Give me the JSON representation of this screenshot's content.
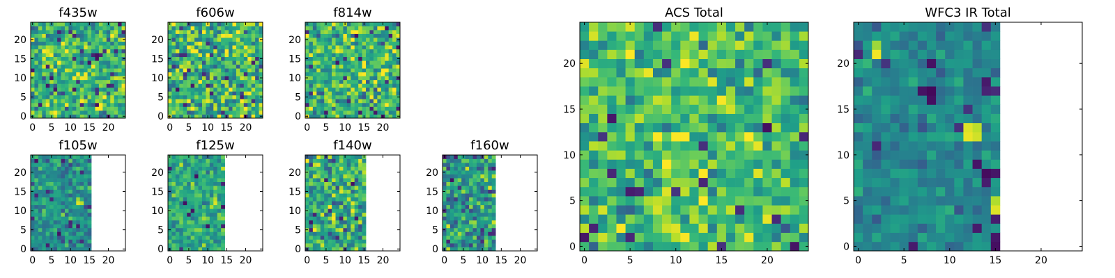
{
  "figure": {
    "background": "#ffffff",
    "colormap": "viridis"
  },
  "chart_data": [
    {
      "id": "f435w",
      "type": "heatmap",
      "title": "f435w",
      "valid_columns": 25,
      "xlim": [
        0,
        24
      ],
      "ylim": [
        0,
        24
      ],
      "xticks": [
        0,
        5,
        10,
        15,
        20
      ],
      "yticks": [
        0,
        5,
        10,
        15,
        20
      ],
      "seed": 1435,
      "mean": 0.65,
      "spread": 0.22,
      "wmin": 0,
      "wmax": 1
    },
    {
      "id": "f606w",
      "type": "heatmap",
      "title": "f606w",
      "valid_columns": 25,
      "xlim": [
        0,
        24
      ],
      "ylim": [
        0,
        24
      ],
      "xticks": [
        0,
        5,
        10,
        15,
        20
      ],
      "yticks": [
        0,
        5,
        10,
        15,
        20
      ],
      "seed": 1606,
      "mean": 0.65,
      "spread": 0.25,
      "wmin": 0,
      "wmax": 1
    },
    {
      "id": "f814w",
      "type": "heatmap",
      "title": "f814w",
      "valid_columns": 25,
      "xlim": [
        0,
        24
      ],
      "ylim": [
        0,
        24
      ],
      "xticks": [
        0,
        5,
        10,
        15,
        20
      ],
      "yticks": [
        0,
        5,
        10,
        15,
        20
      ],
      "seed": 1814,
      "mean": 0.66,
      "spread": 0.22,
      "wmin": 0,
      "wmax": 1
    },
    {
      "id": "f105w",
      "type": "heatmap",
      "title": "f105w",
      "valid_columns": 16,
      "xlim": [
        0,
        24
      ],
      "ylim": [
        0,
        24
      ],
      "xticks": [
        0,
        5,
        10,
        15,
        20
      ],
      "yticks": [
        0,
        5,
        10,
        15,
        20
      ],
      "seed": 2105,
      "mean": 0.5,
      "spread": 0.14,
      "wmin": 0,
      "wmax": 1,
      "hot": [
        [
          12,
          12,
          0.95
        ],
        [
          13,
          12,
          0.9
        ],
        [
          12,
          13,
          0.85
        ]
      ]
    },
    {
      "id": "f125w",
      "type": "heatmap",
      "title": "f125w",
      "valid_columns": 15,
      "xlim": [
        0,
        24
      ],
      "ylim": [
        0,
        24
      ],
      "xticks": [
        0,
        5,
        10,
        15,
        20
      ],
      "yticks": [
        0,
        5,
        10,
        15,
        20
      ],
      "seed": 2125,
      "mean": 0.6,
      "spread": 0.14,
      "wmin": 0,
      "wmax": 1,
      "hot": [
        [
          12,
          12,
          0.95
        ],
        [
          12,
          13,
          0.9
        ],
        [
          14,
          21,
          0.9
        ]
      ]
    },
    {
      "id": "f140w",
      "type": "heatmap",
      "title": "f140w",
      "valid_columns": 16,
      "xlim": [
        0,
        24
      ],
      "ylim": [
        0,
        24
      ],
      "xticks": [
        0,
        5,
        10,
        15,
        20
      ],
      "yticks": [
        0,
        5,
        10,
        15,
        20
      ],
      "seed": 2140,
      "mean": 0.6,
      "spread": 0.22,
      "wmin": 0,
      "wmax": 1,
      "hot": [
        [
          12,
          12,
          0.95
        ],
        [
          11,
          13,
          0.92
        ]
      ]
    },
    {
      "id": "f160w",
      "type": "heatmap",
      "title": "f160w",
      "valid_columns": 14,
      "xlim": [
        0,
        24
      ],
      "ylim": [
        0,
        24
      ],
      "xticks": [
        0,
        5,
        10,
        15,
        20
      ],
      "yticks": [
        0,
        5,
        10,
        15,
        20
      ],
      "seed": 2160,
      "mean": 0.55,
      "spread": 0.2,
      "wmin": 0,
      "wmax": 1
    },
    {
      "id": "acs",
      "type": "heatmap",
      "title": "ACS Total",
      "valid_columns": 25,
      "xlim": [
        0,
        24
      ],
      "ylim": [
        0,
        24
      ],
      "xticks": [
        0,
        5,
        10,
        15,
        20
      ],
      "yticks": [
        0,
        5,
        10,
        15,
        20
      ],
      "seed": 3001,
      "mean": 0.68,
      "spread": 0.18,
      "wmin": 0,
      "wmax": 1
    },
    {
      "id": "wfc3",
      "type": "heatmap",
      "title": "WFC3 IR Total",
      "valid_columns": 16,
      "xlim": [
        0,
        24
      ],
      "ylim": [
        0,
        24
      ],
      "xticks": [
        0,
        5,
        10,
        15,
        20
      ],
      "yticks": [
        0,
        5,
        10,
        15,
        20
      ],
      "seed": 4001,
      "mean": 0.47,
      "spread": 0.1,
      "wmin": 0,
      "wmax": 1,
      "hot": [
        [
          12,
          12,
          0.97
        ],
        [
          12,
          13,
          0.95
        ],
        [
          13,
          12,
          0.93
        ],
        [
          13,
          13,
          0.9
        ],
        [
          2,
          21,
          0.98
        ],
        [
          2,
          22,
          0.85
        ],
        [
          8,
          17,
          0.02
        ],
        [
          7,
          17,
          0.05
        ],
        [
          8,
          16,
          0.04
        ],
        [
          14,
          8,
          0.03
        ],
        [
          15,
          8,
          0.06
        ],
        [
          14,
          7,
          0.08
        ],
        [
          15,
          3,
          0.08
        ],
        [
          15,
          0,
          0.04
        ],
        [
          15,
          1,
          0.06
        ],
        [
          14,
          17,
          0.1
        ],
        [
          15,
          17,
          0.12
        ],
        [
          15,
          4,
          0.95
        ],
        [
          15,
          5,
          0.88
        ]
      ]
    }
  ]
}
